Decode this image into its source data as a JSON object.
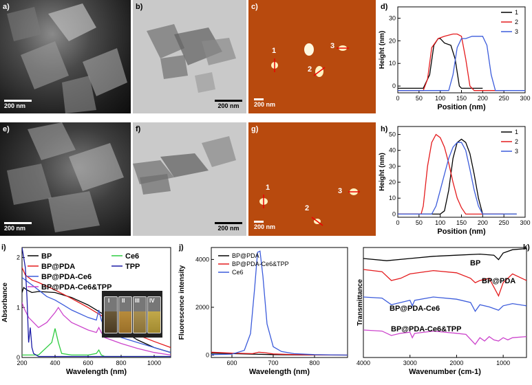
{
  "panels": {
    "a": {
      "label": "a)",
      "scale": "200 nm"
    },
    "b": {
      "label": "b)",
      "scale": "200 nm"
    },
    "c": {
      "label": "c)",
      "scale": "200 nm",
      "markers": [
        "1",
        "2",
        "3"
      ]
    },
    "d": {
      "label": "d)"
    },
    "e": {
      "label": "e)",
      "scale": "200 nm"
    },
    "f": {
      "label": "f)",
      "scale": "200 nm"
    },
    "g": {
      "label": "g)",
      "scale": "200 nm",
      "markers": [
        "1",
        "2",
        "3"
      ]
    },
    "h": {
      "label": "h)"
    },
    "i": {
      "label": "i)",
      "inset_labels": [
        "I",
        "II",
        "III",
        "IV"
      ]
    },
    "j": {
      "label": "j)"
    },
    "k": {
      "label": "k)"
    }
  },
  "colors": {
    "black": "#000000",
    "red": "#e41a1c",
    "blue": "#3b5bdb",
    "green": "#2ecc40",
    "magenta": "#cc44cc",
    "navy": "#1a1aa6",
    "afm_bg": "#b84a0e"
  },
  "chart_data": [
    {
      "id": "d",
      "type": "line",
      "xlabel": "Position (nm)",
      "ylabel": "Height (nm)",
      "xlim": [
        0,
        300
      ],
      "ylim": [
        -3,
        35
      ],
      "xticks": [
        0,
        50,
        100,
        150,
        200,
        250,
        300
      ],
      "yticks": [
        0,
        10,
        20,
        30
      ],
      "legend": "top-right",
      "series": [
        {
          "name": "1",
          "color": "#000000",
          "x": [
            0,
            60,
            75,
            85,
            95,
            100,
            110,
            125,
            135,
            145,
            150,
            160,
            200
          ],
          "y": [
            -1,
            -1,
            5,
            18,
            21,
            21,
            19,
            18,
            12,
            0,
            -1,
            -1,
            -1
          ]
        },
        {
          "name": "2",
          "color": "#e41a1c",
          "x": [
            0,
            60,
            70,
            80,
            95,
            110,
            130,
            140,
            150,
            160,
            170,
            180,
            250
          ],
          "y": [
            -2,
            -2,
            3,
            17,
            21,
            22,
            23,
            23,
            22,
            12,
            0,
            -2,
            -2
          ]
        },
        {
          "name": "3",
          "color": "#3b5bdb",
          "x": [
            0,
            120,
            130,
            140,
            150,
            160,
            175,
            190,
            200,
            210,
            220,
            230,
            300
          ],
          "y": [
            -2,
            -2,
            5,
            17,
            21,
            21,
            22,
            22,
            22,
            18,
            5,
            -2,
            -2
          ]
        }
      ]
    },
    {
      "id": "h",
      "type": "line",
      "xlabel": "Position (nm)",
      "ylabel": "Height (nm)",
      "xlim": [
        0,
        300
      ],
      "ylim": [
        -2,
        55
      ],
      "xticks": [
        0,
        50,
        100,
        150,
        200,
        250,
        300
      ],
      "yticks": [
        0,
        10,
        20,
        30,
        40,
        50
      ],
      "legend": "top-right",
      "series": [
        {
          "name": "1",
          "color": "#000000",
          "x": [
            0,
            100,
            110,
            120,
            130,
            140,
            150,
            160,
            170,
            180,
            190,
            200,
            280
          ],
          "y": [
            0,
            0,
            2,
            15,
            35,
            45,
            47,
            45,
            38,
            25,
            10,
            0,
            0
          ]
        },
        {
          "name": "2",
          "color": "#e41a1c",
          "x": [
            0,
            55,
            60,
            70,
            80,
            90,
            100,
            110,
            120,
            130,
            140,
            150,
            160,
            170,
            250
          ],
          "y": [
            0,
            0,
            5,
            30,
            45,
            50,
            48,
            42,
            32,
            20,
            10,
            4,
            0,
            0,
            0
          ]
        },
        {
          "name": "3",
          "color": "#3b5bdb",
          "x": [
            0,
            80,
            90,
            100,
            110,
            120,
            130,
            140,
            150,
            160,
            170,
            180,
            190,
            200,
            280
          ],
          "y": [
            0,
            0,
            5,
            15,
            25,
            35,
            42,
            45,
            45,
            40,
            28,
            15,
            5,
            0,
            0
          ]
        }
      ]
    },
    {
      "id": "i",
      "type": "line",
      "xlabel": "Wavelength (nm)",
      "ylabel": "Absorbance",
      "xlim": [
        200,
        1100
      ],
      "ylim": [
        0,
        2.2
      ],
      "xticks": [
        200,
        400,
        600,
        800,
        1000
      ],
      "yticks": [
        0,
        1,
        2
      ],
      "legend": "top",
      "series": [
        {
          "name": "BP",
          "color": "#000000",
          "x": [
            200,
            210,
            230,
            260,
            300,
            400,
            500,
            600,
            700,
            800,
            900,
            1000,
            1100
          ],
          "y": [
            1.3,
            1.4,
            1.35,
            1.3,
            1.32,
            1.3,
            1.2,
            1.05,
            0.85,
            0.55,
            0.35,
            0.2,
            0.1
          ]
        },
        {
          "name": "BP@PDA",
          "color": "#e41a1c",
          "x": [
            200,
            220,
            260,
            300,
            400,
            500,
            600,
            700,
            800,
            900,
            1000,
            1100
          ],
          "y": [
            1.8,
            1.65,
            1.55,
            1.5,
            1.35,
            1.18,
            1.0,
            0.8,
            0.6,
            0.45,
            0.32,
            0.2
          ]
        },
        {
          "name": "BP@PDA-Ce6",
          "color": "#3b5bdb",
          "x": [
            200,
            220,
            260,
            300,
            350,
            400,
            450,
            500,
            600,
            650,
            665,
            680,
            700,
            800,
            900,
            1000,
            1100
          ],
          "y": [
            1.6,
            1.55,
            1.45,
            1.35,
            1.22,
            1.15,
            1.05,
            0.95,
            0.8,
            0.75,
            0.95,
            0.75,
            0.6,
            0.4,
            0.3,
            0.2,
            0.1
          ]
        },
        {
          "name": "BP@PDA-Ce6&TPP",
          "color": "#cc44cc",
          "x": [
            200,
            210,
            240,
            300,
            350,
            400,
            420,
            450,
            500,
            600,
            650,
            665,
            680,
            700,
            800,
            900,
            1000,
            1100
          ],
          "y": [
            1.1,
            1.0,
            0.8,
            0.6,
            0.7,
            0.9,
            1.0,
            0.85,
            0.7,
            0.55,
            0.5,
            0.6,
            0.5,
            0.4,
            0.28,
            0.18,
            0.1,
            0.05
          ]
        },
        {
          "name": "Ce6",
          "color": "#2ecc40",
          "x": [
            200,
            300,
            380,
            400,
            420,
            440,
            500,
            600,
            650,
            665,
            680,
            700,
            1100
          ],
          "y": [
            0.05,
            0.05,
            0.3,
            0.58,
            0.3,
            0.08,
            0.05,
            0.05,
            0.08,
            0.15,
            0.05,
            0.02,
            0.02
          ]
        },
        {
          "name": "TPP",
          "color": "#1a1aa6",
          "x": [
            200,
            210,
            220,
            230,
            240,
            250,
            260,
            270,
            300,
            400,
            1100
          ],
          "y": [
            2.2,
            2.0,
            1.8,
            1.2,
            0.3,
            0.6,
            0.2,
            0.08,
            0.02,
            0.02,
            0.02
          ]
        }
      ]
    },
    {
      "id": "j",
      "type": "line",
      "xlabel": "Wavelength (nm)",
      "ylabel": "Fluorescence intensity",
      "xlim": [
        550,
        880
      ],
      "ylim": [
        -100,
        4500
      ],
      "xticks": [
        600,
        700,
        800
      ],
      "yticks": [
        0,
        2000,
        4000
      ],
      "legend": "top-right",
      "series": [
        {
          "name": "BP@PDA",
          "color": "#000000",
          "x": [
            550,
            600,
            650,
            700,
            750,
            800,
            880
          ],
          "y": [
            80,
            60,
            40,
            20,
            10,
            5,
            0
          ]
        },
        {
          "name": "BP@PDA-Ce6&TPP",
          "color": "#e41a1c",
          "x": [
            550,
            600,
            650,
            665,
            680,
            700,
            750,
            800,
            880
          ],
          "y": [
            120,
            80,
            60,
            120,
            100,
            50,
            20,
            10,
            0
          ]
        },
        {
          "name": "Ce6",
          "color": "#3b5bdb",
          "x": [
            550,
            600,
            630,
            645,
            655,
            662,
            668,
            675,
            685,
            700,
            720,
            750,
            800,
            880
          ],
          "y": [
            20,
            40,
            200,
            900,
            2800,
            4300,
            4350,
            3300,
            1300,
            350,
            150,
            60,
            20,
            0
          ]
        }
      ]
    },
    {
      "id": "k",
      "type": "line",
      "xlabel": "Wavenumber (cm-1)",
      "ylabel": "Transmittance",
      "xlim": [
        4000,
        500
      ],
      "ylim": [
        0,
        10
      ],
      "xticks": [
        4000,
        3000,
        2000,
        1000
      ],
      "yticks": [],
      "series": [
        {
          "name": "BP",
          "color": "#000000",
          "x": [
            4000,
            3500,
            3000,
            2500,
            2000,
            1500,
            1200,
            1100,
            1000,
            800,
            500
          ],
          "y": [
            9.0,
            8.8,
            9.0,
            9.2,
            9.3,
            9.4,
            9.3,
            8.9,
            9.5,
            9.8,
            9.9
          ]
        },
        {
          "name": "BP@PDA",
          "color": "#e41a1c",
          "x": [
            4000,
            3600,
            3400,
            3200,
            3000,
            2500,
            2000,
            1700,
            1600,
            1500,
            1300,
            1100,
            1000,
            800,
            500
          ],
          "y": [
            8.0,
            7.8,
            7.0,
            7.2,
            7.6,
            7.9,
            7.7,
            7.2,
            6.8,
            7.0,
            7.2,
            5.6,
            6.8,
            7.6,
            7.0
          ]
        },
        {
          "name": "BP@PDA-Ce6",
          "color": "#3b5bdb",
          "x": [
            4000,
            3600,
            3400,
            3200,
            3000,
            2950,
            2900,
            2500,
            2000,
            1700,
            1600,
            1500,
            1300,
            1100,
            1000,
            800,
            500
          ],
          "y": [
            5.5,
            5.4,
            4.8,
            5.0,
            5.2,
            4.7,
            5.2,
            5.5,
            5.3,
            5.0,
            4.2,
            4.8,
            4.6,
            4.3,
            4.7,
            4.9,
            4.7
          ]
        },
        {
          "name": "BP@PDA-Ce6&TPP",
          "color": "#cc44cc",
          "x": [
            4000,
            3600,
            3400,
            3200,
            3000,
            2950,
            2900,
            2500,
            2000,
            1800,
            1600,
            1500,
            1400,
            1300,
            1200,
            1100,
            1000,
            900,
            800,
            500
          ],
          "y": [
            2.5,
            2.4,
            2.0,
            2.2,
            2.3,
            1.8,
            2.2,
            2.4,
            2.2,
            2.1,
            1.2,
            1.8,
            1.5,
            1.9,
            1.6,
            1.5,
            1.8,
            1.6,
            1.8,
            1.9
          ]
        }
      ]
    }
  ]
}
